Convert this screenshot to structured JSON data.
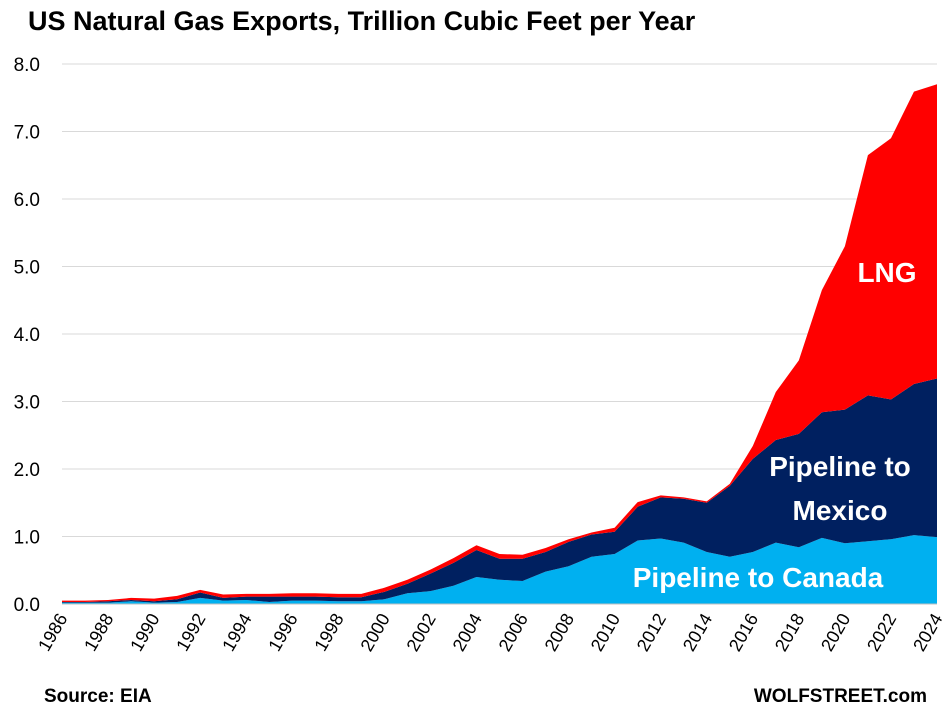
{
  "title": "US Natural Gas Exports, Trillion Cubic Feet per Year",
  "source": "Source: EIA",
  "credit": "WOLFSTREET.com",
  "chart_data": {
    "type": "area",
    "stacked": true,
    "grid": true,
    "ylim": [
      0,
      8
    ],
    "yticks": [
      "0.0",
      "1.0",
      "2.0",
      "3.0",
      "4.0",
      "5.0",
      "6.0",
      "7.0",
      "8.0"
    ],
    "xlabels": [
      "1986",
      "1988",
      "1990",
      "1992",
      "1994",
      "1996",
      "1998",
      "2000",
      "2002",
      "2004",
      "2006",
      "2008",
      "2010",
      "2012",
      "2014",
      "2016",
      "2018",
      "2020",
      "2022",
      "2024"
    ],
    "x": [
      1986,
      1987,
      1988,
      1989,
      1990,
      1991,
      1992,
      1993,
      1994,
      1995,
      1996,
      1997,
      1998,
      1999,
      2000,
      2001,
      2002,
      2003,
      2004,
      2005,
      2006,
      2007,
      2008,
      2009,
      2010,
      2011,
      2012,
      2013,
      2014,
      2015,
      2016,
      2017,
      2018,
      2019,
      2020,
      2021,
      2022,
      2023,
      2024
    ],
    "series": [
      {
        "name": "Pipeline to Canada",
        "label": "Pipeline to Canada",
        "color": "#00B0F0",
        "values": [
          0.02,
          0.02,
          0.02,
          0.04,
          0.02,
          0.03,
          0.09,
          0.05,
          0.06,
          0.03,
          0.05,
          0.05,
          0.04,
          0.04,
          0.07,
          0.16,
          0.19,
          0.27,
          0.4,
          0.36,
          0.34,
          0.48,
          0.56,
          0.7,
          0.74,
          0.94,
          0.97,
          0.91,
          0.77,
          0.7,
          0.77,
          0.91,
          0.84,
          0.98,
          0.9,
          0.93,
          0.96,
          1.02,
          0.99
        ]
      },
      {
        "name": "Pipeline to Mexico",
        "label": "Pipeline to\nMexico",
        "color": "#002060",
        "values": [
          0.01,
          0.01,
          0.02,
          0.02,
          0.02,
          0.04,
          0.08,
          0.04,
          0.05,
          0.08,
          0.06,
          0.06,
          0.06,
          0.06,
          0.11,
          0.14,
          0.26,
          0.34,
          0.4,
          0.31,
          0.33,
          0.29,
          0.36,
          0.33,
          0.33,
          0.5,
          0.61,
          0.65,
          0.73,
          1.05,
          1.38,
          1.52,
          1.68,
          1.86,
          1.98,
          2.16,
          2.07,
          2.24,
          2.35
        ]
      },
      {
        "name": "LNG",
        "label": "LNG",
        "color": "#FF0000",
        "values": [
          0.02,
          0.02,
          0.02,
          0.03,
          0.04,
          0.05,
          0.04,
          0.05,
          0.04,
          0.04,
          0.05,
          0.05,
          0.05,
          0.05,
          0.06,
          0.06,
          0.06,
          0.07,
          0.07,
          0.07,
          0.06,
          0.06,
          0.04,
          0.03,
          0.06,
          0.07,
          0.03,
          0.02,
          0.02,
          0.03,
          0.19,
          0.71,
          1.09,
          1.81,
          2.42,
          3.56,
          3.87,
          4.33,
          4.36
        ]
      }
    ]
  }
}
